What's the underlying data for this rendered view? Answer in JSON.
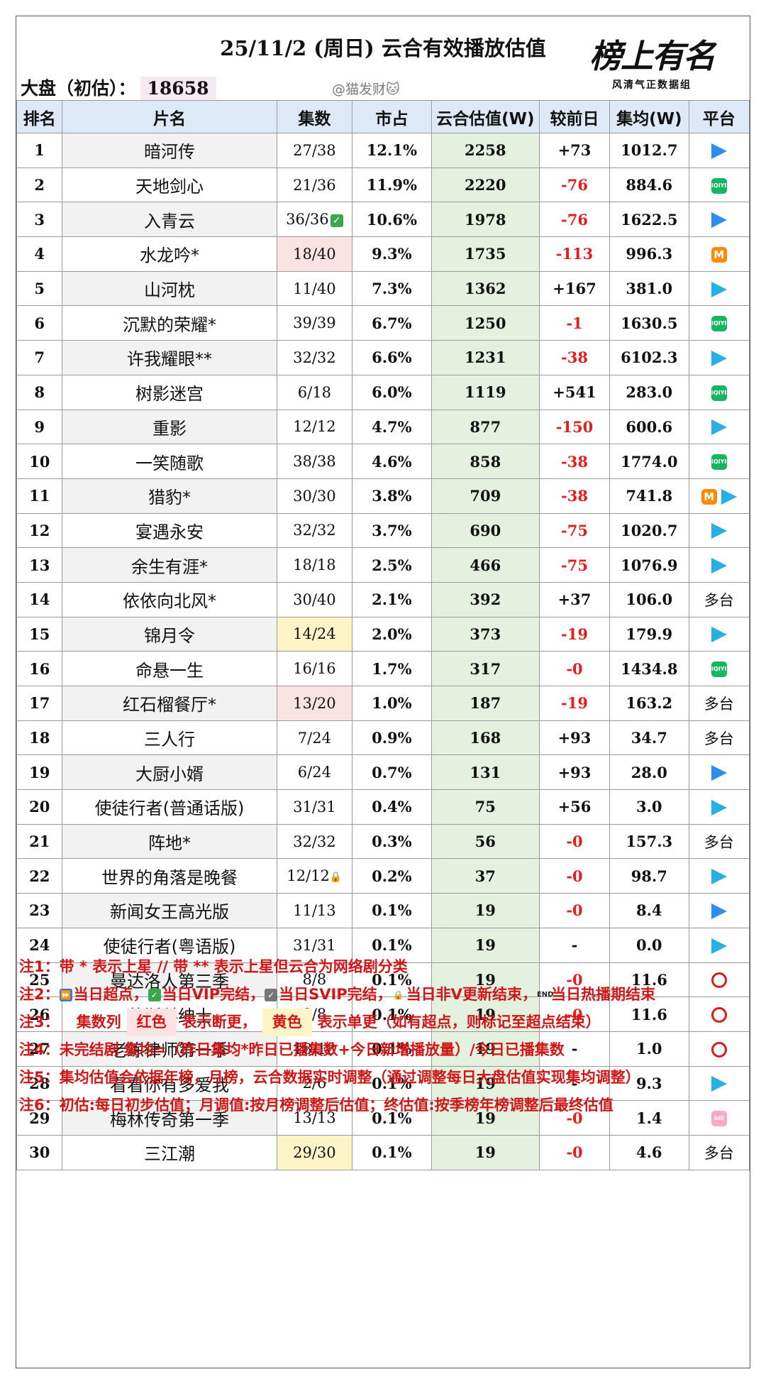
{
  "header": {
    "title": "25/11/2 (周日) 云合有效播放估值",
    "market_label": "大盘（初估）：",
    "market_value": "18658",
    "watermark": "@猫发财🐱",
    "logo_main": "榜上有名",
    "logo_sub": "风清气正数据组"
  },
  "columns": [
    "排名",
    "片名",
    "集数",
    "市占",
    "云合估值(W)",
    "较前日",
    "集均(W)",
    "平台"
  ],
  "rows": [
    {
      "rank": "1",
      "name": "暗河传",
      "eps": "27/38",
      "share": "12.1%",
      "est": "2258",
      "delta": "+73",
      "avg": "1012.7",
      "plat": [
        "tencent"
      ]
    },
    {
      "rank": "2",
      "name": "天地剑心",
      "eps": "21/36",
      "share": "11.9%",
      "est": "2220",
      "delta": "-76",
      "avg": "884.6",
      "plat": [
        "iqiyi"
      ]
    },
    {
      "rank": "3",
      "name": "入青云",
      "eps": "36/36",
      "eps_mark": "vip",
      "share": "10.6%",
      "est": "1978",
      "delta": "-76",
      "avg": "1622.5",
      "plat": [
        "tencent"
      ]
    },
    {
      "rank": "4",
      "name": "水龙吟*",
      "eps": "18/40",
      "eps_hl": "red",
      "share": "9.3%",
      "est": "1735",
      "delta": "-113",
      "avg": "996.3",
      "plat": [
        "mango"
      ]
    },
    {
      "rank": "5",
      "name": "山河枕",
      "eps": "11/40",
      "share": "7.3%",
      "est": "1362",
      "delta": "+167",
      "avg": "381.0",
      "plat": [
        "youku"
      ]
    },
    {
      "rank": "6",
      "name": "沉默的荣耀*",
      "eps": "39/39",
      "share": "6.7%",
      "est": "1250",
      "delta": "-1",
      "avg": "1630.5",
      "plat": [
        "iqiyi"
      ]
    },
    {
      "rank": "7",
      "name": "许我耀眼**",
      "eps": "32/32",
      "share": "6.6%",
      "est": "1231",
      "delta": "-38",
      "avg": "6102.3",
      "plat": [
        "youku"
      ]
    },
    {
      "rank": "8",
      "name": "树影迷宫",
      "eps": "6/18",
      "share": "6.0%",
      "est": "1119",
      "delta": "+541",
      "avg": "283.0",
      "plat": [
        "iqiyi"
      ]
    },
    {
      "rank": "9",
      "name": "重影",
      "eps": "12/12",
      "share": "4.7%",
      "est": "877",
      "delta": "-150",
      "avg": "600.6",
      "plat": [
        "youku"
      ]
    },
    {
      "rank": "10",
      "name": "一笑随歌",
      "eps": "38/38",
      "share": "4.6%",
      "est": "858",
      "delta": "-38",
      "avg": "1774.0",
      "plat": [
        "iqiyi"
      ]
    },
    {
      "rank": "11",
      "name": "猎豹*",
      "eps": "30/30",
      "share": "3.8%",
      "est": "709",
      "delta": "-38",
      "avg": "741.8",
      "plat": [
        "mango",
        "youku"
      ]
    },
    {
      "rank": "12",
      "name": "宴遇永安",
      "eps": "32/32",
      "share": "3.7%",
      "est": "690",
      "delta": "-75",
      "avg": "1020.7",
      "plat": [
        "youku"
      ]
    },
    {
      "rank": "13",
      "name": "余生有涯*",
      "eps": "18/18",
      "share": "2.5%",
      "est": "466",
      "delta": "-75",
      "avg": "1076.9",
      "plat": [
        "youku"
      ]
    },
    {
      "rank": "14",
      "name": "依依向北风*",
      "eps": "30/40",
      "share": "2.1%",
      "est": "392",
      "delta": "+37",
      "avg": "106.0",
      "plat_text": "多台"
    },
    {
      "rank": "15",
      "name": "锦月令",
      "eps": "14/24",
      "eps_hl": "yellow",
      "share": "2.0%",
      "est": "373",
      "delta": "-19",
      "avg": "179.9",
      "plat": [
        "youku"
      ]
    },
    {
      "rank": "16",
      "name": "命悬一生",
      "eps": "16/16",
      "share": "1.7%",
      "est": "317",
      "delta": "-0",
      "avg": "1434.8",
      "plat": [
        "iqiyi"
      ]
    },
    {
      "rank": "17",
      "name": "红石榴餐厅*",
      "eps": "13/20",
      "eps_hl": "red",
      "share": "1.0%",
      "est": "187",
      "delta": "-19",
      "avg": "163.2",
      "plat_text": "多台"
    },
    {
      "rank": "18",
      "name": "三人行",
      "eps": "7/24",
      "share": "0.9%",
      "est": "168",
      "delta": "+93",
      "avg": "34.7",
      "plat_text": "多台"
    },
    {
      "rank": "19",
      "name": "大厨小婿",
      "eps": "6/24",
      "share": "0.7%",
      "est": "131",
      "delta": "+93",
      "avg": "28.0",
      "plat": [
        "tencent"
      ]
    },
    {
      "rank": "20",
      "name": "使徒行者(普通话版)",
      "eps": "31/31",
      "share": "0.4%",
      "est": "75",
      "delta": "+56",
      "avg": "3.0",
      "plat": [
        "youku"
      ]
    },
    {
      "rank": "21",
      "name": "阵地*",
      "eps": "32/32",
      "share": "0.3%",
      "est": "56",
      "delta": "-0",
      "avg": "157.3",
      "plat_text": "多台"
    },
    {
      "rank": "22",
      "name": "世界的角落是晚餐",
      "eps": "12/12",
      "eps_mark": "lock",
      "share": "0.2%",
      "est": "37",
      "delta": "-0",
      "avg": "98.7",
      "plat": [
        "youku"
      ]
    },
    {
      "rank": "23",
      "name": "新闻女王高光版",
      "eps": "11/13",
      "share": "0.1%",
      "est": "19",
      "delta": "-0",
      "avg": "8.4",
      "plat": [
        "tencent"
      ]
    },
    {
      "rank": "24",
      "name": "使徒行者(粤语版)",
      "eps": "31/31",
      "share": "0.1%",
      "est": "19",
      "delta": "-",
      "avg": "0.0",
      "plat": [
        "youku"
      ]
    },
    {
      "rank": "25",
      "name": "曼达洛人第三季",
      "eps": "8/8",
      "share": "0.1%",
      "est": "19",
      "delta": "-0",
      "avg": "11.6",
      "plat": [
        "cctv"
      ]
    },
    {
      "rank": "26",
      "name": "莫斯科绅士",
      "eps": "8/8",
      "share": "0.1%",
      "est": "19",
      "delta": "-0",
      "avg": "11.6",
      "plat": [
        "cctv"
      ]
    },
    {
      "rank": "27",
      "name": "老练律师第一季",
      "eps": "18/18",
      "share": "0.1%",
      "est": "19",
      "delta": "-",
      "avg": "1.0",
      "plat": [
        "cctv"
      ]
    },
    {
      "rank": "28",
      "name": "看看你有多爱我",
      "eps": "2/6",
      "share": "0.1%",
      "est": "19",
      "delta": "-",
      "avg": "9.3",
      "plat": [
        "youku"
      ]
    },
    {
      "rank": "29",
      "name": "梅林传奇第一季",
      "eps": "13/13",
      "share": "0.1%",
      "est": "19",
      "delta": "-0",
      "avg": "1.4",
      "plat": [
        "bili"
      ]
    },
    {
      "rank": "30",
      "name": "三江潮",
      "eps": "29/30",
      "eps_hl": "yellow",
      "share": "0.1%",
      "est": "19",
      "delta": "-0",
      "avg": "4.6",
      "plat_text": "多台"
    }
  ],
  "platform_icon_text": {
    "iqiyi": "iQIYI",
    "mango": "M",
    "bili": "bili"
  },
  "notes": {
    "n1": "注1：带 * 表示上星 // 带 ** 表示上星但云合为网络剧分类",
    "n2_prefix": "注2：",
    "n2_a": "当日超点，",
    "n2_b": "当日VIP完结，",
    "n2_c": "当日SVIP完结，",
    "n2_d": "当日非V更新结束，",
    "n2_e": "当日热播期结束",
    "end_icon_text": "END",
    "n3_prefix": "注3：",
    "n3_a": "集数列",
    "n3_red": "红色",
    "n3_b": "表示断更，",
    "n3_yel": "黄色",
    "n3_c": "表示单更（如有超点，则标记至超点结束）",
    "n4": "注4：未完结剧 集均=（昨日集均*昨日已播集数+今日新增播放量）/今日已播集数",
    "n5": "注5：集均估值会依据年榜，月榜，云合数据实时调整（通过调整每日大盘估值实现集均调整）",
    "n6": "注6：初估:每日初步估值；月调值:按月榜调整后估值；终估值:按季榜年榜调整后最终估值"
  },
  "colors": {
    "negative": "#e02020",
    "estimate_bg": "#e4f1df",
    "header_bg": "#dde9f6",
    "note_red": "#d01717"
  }
}
